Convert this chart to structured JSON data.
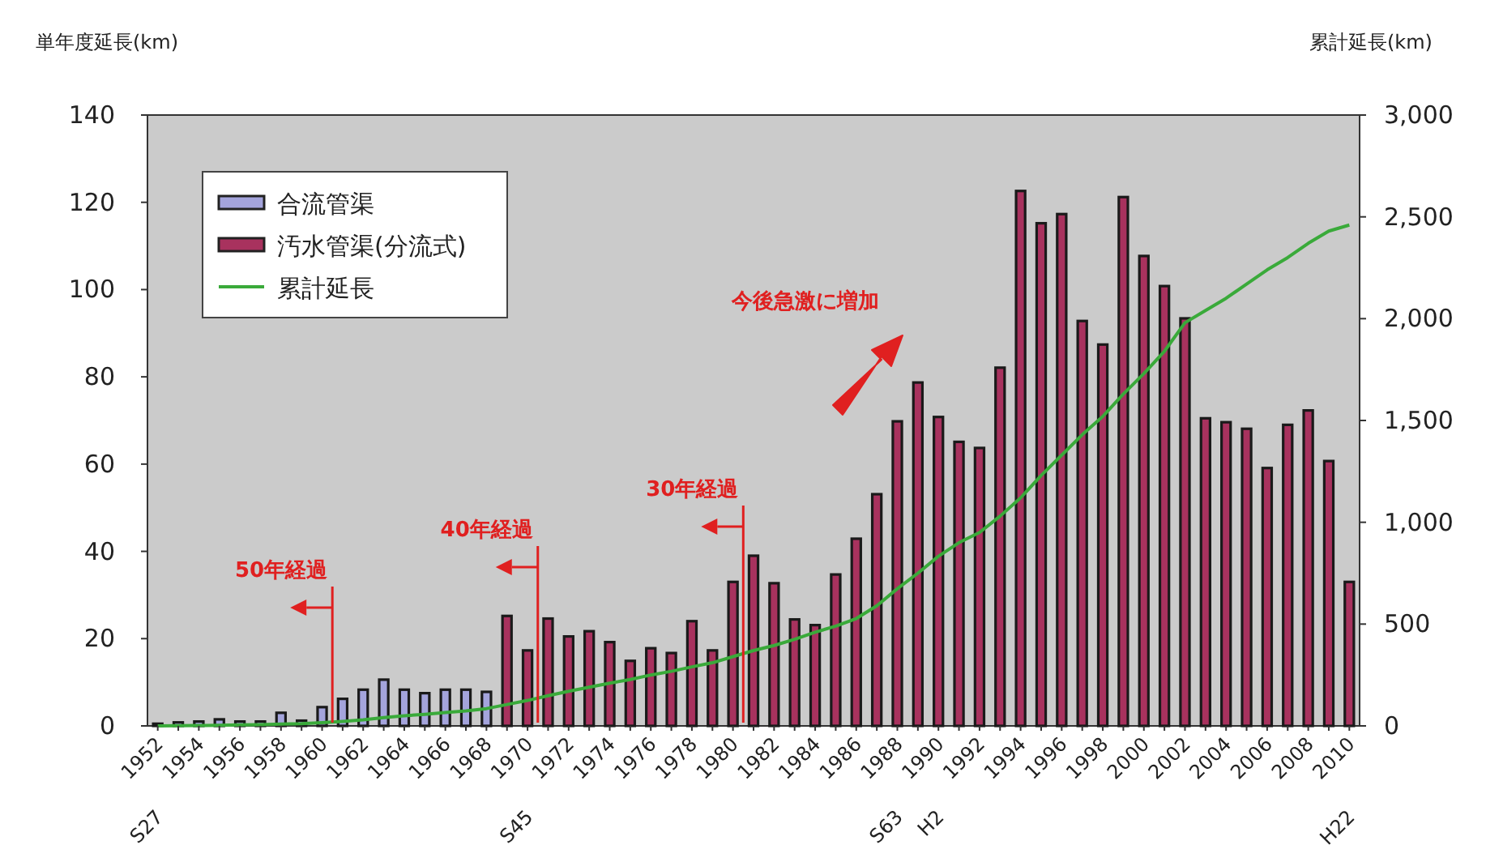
{
  "chart_data": {
    "type": "bar",
    "ylabel": "単年度延長(km)",
    "y2label": "累計延長(km)",
    "legend": "top left",
    "x": [
      1952,
      1953,
      1954,
      1955,
      1956,
      1957,
      1958,
      1959,
      1960,
      1961,
      1962,
      1963,
      1964,
      1965,
      1966,
      1967,
      1968,
      1969,
      1970,
      1971,
      1972,
      1973,
      1974,
      1975,
      1976,
      1977,
      1978,
      1979,
      1980,
      1981,
      1982,
      1983,
      1984,
      1985,
      1986,
      1987,
      1988,
      1989,
      1990,
      1991,
      1992,
      1993,
      1994,
      1995,
      1996,
      1997,
      1998,
      1999,
      2000,
      2001,
      2002,
      2003,
      2004,
      2005,
      2006,
      2007,
      2008,
      2009,
      2010
    ],
    "xlim": [
      1951.5,
      2010.5
    ],
    "xticks": [
      {
        "value": 1952,
        "label": "1952\nS27"
      },
      {
        "value": 1953,
        "label": null
      },
      1954,
      {
        "value": 1955,
        "label": null
      },
      1956,
      {
        "value": 1957,
        "label": null
      },
      1958,
      {
        "value": 1959,
        "label": null
      },
      1960,
      {
        "value": 1961,
        "label": null
      },
      1962,
      {
        "value": 1963,
        "label": null
      },
      1964,
      {
        "value": 1965,
        "label": null
      },
      1966,
      {
        "value": 1967,
        "label": null
      },
      1968,
      {
        "value": 1969,
        "label": null
      },
      {
        "value": 1970,
        "label": "1970\nS45"
      },
      {
        "value": 1971,
        "label": null
      },
      1972,
      {
        "value": 1973,
        "label": null
      },
      1974,
      {
        "value": 1975,
        "label": null
      },
      1976,
      {
        "value": 1977,
        "label": null
      },
      1978,
      {
        "value": 1979,
        "label": null
      },
      1980,
      {
        "value": 1981,
        "label": null
      },
      1982,
      {
        "value": 1983,
        "label": null
      },
      1984,
      {
        "value": 1985,
        "label": null
      },
      1986,
      {
        "value": 1987,
        "label": null
      },
      {
        "value": 1988,
        "label": "1988\nS63"
      },
      {
        "value": 1989,
        "label": null
      },
      {
        "value": 1990,
        "label": "1990\nH2"
      },
      {
        "value": 1991,
        "label": null
      },
      1992,
      {
        "value": 1993,
        "label": null
      },
      1994,
      {
        "value": 1995,
        "label": null
      },
      1996,
      {
        "value": 1997,
        "label": null
      },
      1998,
      {
        "value": 1999,
        "label": null
      },
      2000,
      {
        "value": 2001,
        "label": null
      },
      2002,
      {
        "value": 2003,
        "label": null
      },
      2004,
      {
        "value": 2005,
        "label": null
      },
      2006,
      {
        "value": 2007,
        "label": null
      },
      2008,
      {
        "value": 2009,
        "label": null
      },
      {
        "value": 2010,
        "label": "2010\nH22"
      }
    ],
    "series": [
      {
        "name": "合流管渠",
        "color": "#a4a4dc",
        "values": [
          0.5,
          0.8,
          1,
          1.5,
          1,
          1,
          3,
          1.2,
          4.3,
          6.2,
          8.3,
          10.6,
          8.3,
          7.5,
          8.3,
          8.3,
          7.8,
          null,
          null,
          null,
          null,
          null,
          null,
          null,
          null,
          null,
          null,
          null,
          null,
          null,
          null,
          null,
          null,
          null,
          null,
          null,
          null,
          null,
          null,
          null,
          null,
          null,
          null,
          null,
          null,
          null,
          null,
          null,
          null,
          null,
          null,
          null,
          null,
          null,
          null,
          null,
          null,
          null,
          null
        ]
      },
      {
        "name": "汚水管渠(分流式)",
        "color": "#a8325e",
        "values": [
          null,
          null,
          null,
          null,
          null,
          null,
          null,
          null,
          null,
          null,
          null,
          null,
          null,
          null,
          null,
          null,
          null,
          25.2,
          17.3,
          24.6,
          20.5,
          21.7,
          19.2,
          14.9,
          17.8,
          16.7,
          24,
          17.3,
          33,
          39,
          32.7,
          24.4,
          23.1,
          34.7,
          42.9,
          53.1,
          69.8,
          78.7,
          70.8,
          65.1,
          63.7,
          82.1,
          122.6,
          115.2,
          117.3,
          92.8,
          87.4,
          121.2,
          107.7,
          100.8,
          93.4,
          70.5,
          69.6,
          68.1,
          59.1,
          69,
          72.3,
          60.7,
          33
        ]
      },
      {
        "name": "累計延長",
        "type": "line",
        "axis": "y2",
        "color": "#3aaa3a",
        "values": [
          0,
          1,
          2,
          3,
          5,
          6,
          9,
          11,
          16,
          22,
          30,
          41,
          50,
          57,
          66,
          74,
          85,
          105,
          125,
          148,
          170,
          190,
          210,
          228,
          250,
          268,
          290,
          310,
          340,
          370,
          395,
          425,
          460,
          490,
          527,
          590,
          674,
          750,
          833,
          900,
          950,
          1030,
          1120,
          1230,
          1330,
          1430,
          1520,
          1630,
          1730,
          1840,
          1980,
          2040,
          2100,
          2170,
          2240,
          2300,
          2370,
          2430,
          2460
        ]
      }
    ],
    "ylim": [
      0,
      140
    ],
    "yticks": [
      0,
      20,
      40,
      60,
      80,
      100,
      120,
      140
    ],
    "y2lim": [
      0,
      3000
    ],
    "y2ticks": [
      0,
      {
        "value": 500,
        "label": "500"
      },
      {
        "value": 1000,
        "label": "1,000"
      },
      {
        "value": 1500,
        "label": "1,500"
      },
      {
        "value": 2000,
        "label": "2,000"
      },
      {
        "value": 2500,
        "label": "2,500"
      },
      {
        "value": 3000,
        "label": "3,000"
      }
    ],
    "ref_lines": [
      {
        "axis": "x",
        "value": 1960.5,
        "label": "50年経過",
        "color": "#e02020"
      },
      {
        "axis": "x",
        "value": 1970.5,
        "label": "40年経過",
        "color": "#e02020"
      },
      {
        "axis": "x",
        "value": 1980.5,
        "label": "30年経過",
        "color": "#e02020"
      }
    ],
    "annotations": [
      "今後急激に増加"
    ]
  }
}
